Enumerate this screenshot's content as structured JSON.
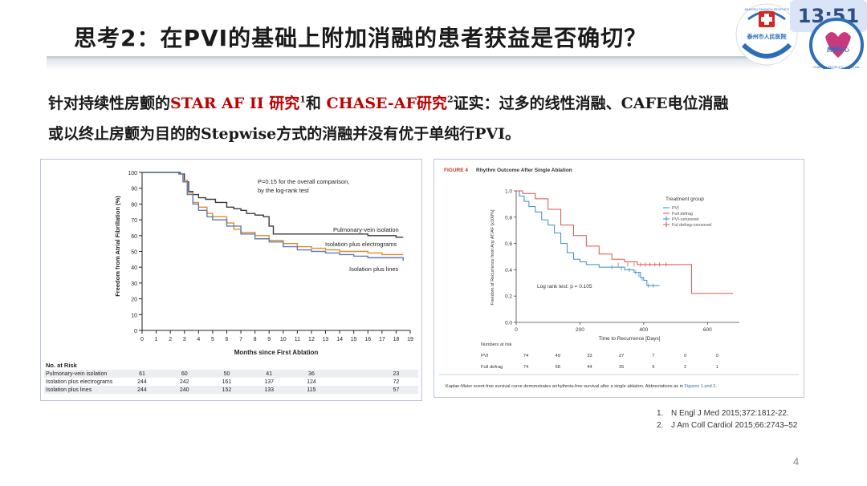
{
  "title": "思考2：在PVI的基础上附加消融的患者获益是否确切？",
  "clock": "13:51",
  "logo": {
    "top_text": "JIANGSU TAIZHOU PEOPLE'S",
    "hospital_cn": "泰州市人民医院",
    "bottom_text": "TAIZHOU PEOPLE'S HOSPITAL",
    "dept_cn": "房颤中心"
  },
  "body": {
    "l1_a": "针对持续性房颤的",
    "l1_red1": "STAR AF II 研究",
    "l1_sup1": "1",
    "l1_b": "和 ",
    "l1_red2": "CHASE-AF研究",
    "l1_sup2": "2",
    "l1_c": "证实：过多的线性消融、CAFE电位消融",
    "l2": "或以终止房颤为目的的Stepwise方式的消融并没有优于单纯行PVI。"
  },
  "left_chart": {
    "annotation_l1": "P=0.15 for the overall comparison,",
    "annotation_l2": "by the log-rank test",
    "ylabel": "Freedom from Atrial Fibrillation (%)",
    "xlabel": "Months since First Ablation",
    "risk_header": "No. at Risk",
    "risk_months": [
      0,
      3,
      6,
      9,
      12,
      18
    ],
    "risk_rows": [
      {
        "label": "Pulmonary-vein isolation",
        "values": [
          "61",
          "60",
          "50",
          "41",
          "36",
          "23"
        ]
      },
      {
        "label": "Isolation plus electrograms",
        "values": [
          "244",
          "242",
          "161",
          "137",
          "124",
          "72"
        ]
      },
      {
        "label": "Isolation plus lines",
        "values": [
          "244",
          "240",
          "152",
          "133",
          "115",
          "57"
        ]
      }
    ]
  },
  "right_chart": {
    "figure_label": "FIGURE 4",
    "figure_title": "Rhythm Outcome After Single Ablation",
    "ylabel": "Freedom of Recurrence from Any AT/AF [x100%]",
    "xlabel": "Time to Recurrence [Days]",
    "legend_title": "Treatment group",
    "legend_items": [
      "PVI",
      "Full defrag",
      "PVI-censored",
      "Ful defrag-censored"
    ],
    "logrank": "Log rank test: p = 0.105",
    "numbers_header": "Numbers at risk",
    "risk_times": [
      0,
      100,
      200,
      300,
      400,
      500,
      600
    ],
    "risk_rows": [
      {
        "label": "PVI",
        "values": [
          "74",
          "49",
          "33",
          "27",
          "7",
          "0",
          "0"
        ]
      },
      {
        "label": "Full defrag",
        "values": [
          "74",
          "58",
          "44",
          "35",
          "9",
          "2",
          "1"
        ]
      }
    ],
    "caption_a": "Kaplan-Meier event-free survival curve demonstrates arrhythmia-free survival after a single ablation. Abbreviations as in ",
    "caption_link": "Figures 1 and 2",
    "caption_b": "."
  },
  "chart_data": [
    {
      "type": "line",
      "title": "",
      "xlabel": "Months since First Ablation",
      "ylabel": "Freedom from Atrial Fibrillation (%)",
      "xlim": [
        0,
        19
      ],
      "ylim": [
        0,
        100
      ],
      "x_ticks": [
        0,
        1,
        2,
        3,
        4,
        5,
        6,
        7,
        8,
        9,
        10,
        11,
        12,
        13,
        14,
        15,
        16,
        17,
        18,
        19
      ],
      "y_ticks": [
        0,
        10,
        20,
        30,
        40,
        50,
        60,
        70,
        80,
        90,
        100
      ],
      "grid": false,
      "series": [
        {
          "name": "Pulmonary-vein isolation",
          "color": "#3a3a3a",
          "points": [
            [
              0,
              100
            ],
            [
              1.5,
              100
            ],
            [
              2.7,
              99
            ],
            [
              3,
              94
            ],
            [
              3.3,
              88
            ],
            [
              3.6,
              86
            ],
            [
              4,
              84
            ],
            [
              4.5,
              83
            ],
            [
              5.2,
              81
            ],
            [
              6,
              78
            ],
            [
              6.5,
              77
            ],
            [
              7,
              76
            ],
            [
              7.4,
              74
            ],
            [
              8,
              73
            ],
            [
              8.6,
              72
            ],
            [
              9,
              66
            ],
            [
              9.3,
              61
            ],
            [
              10,
              61
            ],
            [
              12,
              61
            ],
            [
              14,
              61
            ],
            [
              16,
              60
            ],
            [
              18,
              59
            ],
            [
              18.5,
              59
            ]
          ]
        },
        {
          "name": "Isolation plus electrograms",
          "color": "#e08a2c",
          "points": [
            [
              0,
              100
            ],
            [
              2.6,
              99
            ],
            [
              2.9,
              95
            ],
            [
              3.2,
              87
            ],
            [
              3.6,
              81
            ],
            [
              4,
              78
            ],
            [
              4.6,
              74
            ],
            [
              5,
              72
            ],
            [
              6,
              68
            ],
            [
              6.5,
              64
            ],
            [
              7,
              62
            ],
            [
              8,
              60
            ],
            [
              9,
              57
            ],
            [
              10,
              55
            ],
            [
              11,
              53
            ],
            [
              12,
              52
            ],
            [
              13,
              51
            ],
            [
              14,
              50
            ],
            [
              15,
              50
            ],
            [
              16,
              49
            ],
            [
              17,
              48
            ],
            [
              18.5,
              48
            ]
          ]
        },
        {
          "name": "Isolation plus lines",
          "color": "#5f7bb6",
          "points": [
            [
              0,
              100
            ],
            [
              2.6,
              99
            ],
            [
              2.9,
              94
            ],
            [
              3.2,
              86
            ],
            [
              3.6,
              80
            ],
            [
              4,
              76
            ],
            [
              4.6,
              72
            ],
            [
              5,
              70
            ],
            [
              6,
              66
            ],
            [
              7,
              61
            ],
            [
              8,
              58
            ],
            [
              9,
              56
            ],
            [
              10,
              53
            ],
            [
              11,
              51
            ],
            [
              12,
              50
            ],
            [
              13,
              49
            ],
            [
              14,
              48
            ],
            [
              15,
              47
            ],
            [
              16,
              46
            ],
            [
              17,
              46
            ],
            [
              18.5,
              44
            ]
          ]
        }
      ]
    },
    {
      "type": "line",
      "title": "Rhythm Outcome After Single Ablation",
      "xlabel": "Time to Recurrence [Days]",
      "ylabel": "Freedom of Recurrence from Any AT/AF [x100%]",
      "xlim": [
        0,
        700
      ],
      "ylim": [
        0,
        1.0
      ],
      "x_ticks": [
        0,
        200,
        400,
        600
      ],
      "y_ticks": [
        0.0,
        0.2,
        0.4,
        0.6,
        0.8,
        1.0
      ],
      "grid": false,
      "series": [
        {
          "name": "PVI",
          "color": "#3a8fc8",
          "points": [
            [
              0,
              1.0
            ],
            [
              10,
              0.96
            ],
            [
              25,
              0.92
            ],
            [
              40,
              0.88
            ],
            [
              60,
              0.84
            ],
            [
              80,
              0.78
            ],
            [
              100,
              0.74
            ],
            [
              120,
              0.68
            ],
            [
              140,
              0.6
            ],
            [
              160,
              0.53
            ],
            [
              180,
              0.48
            ],
            [
              200,
              0.46
            ],
            [
              220,
              0.44
            ],
            [
              260,
              0.42
            ],
            [
              300,
              0.42
            ],
            [
              340,
              0.4
            ],
            [
              370,
              0.38
            ],
            [
              390,
              0.34
            ],
            [
              400,
              0.32
            ],
            [
              410,
              0.28
            ],
            [
              450,
              0.28
            ]
          ]
        },
        {
          "name": "Full defrag",
          "color": "#d9534f",
          "points": [
            [
              0,
              1.0
            ],
            [
              20,
              0.98
            ],
            [
              60,
              0.94
            ],
            [
              100,
              0.86
            ],
            [
              140,
              0.74
            ],
            [
              180,
              0.66
            ],
            [
              220,
              0.58
            ],
            [
              260,
              0.52
            ],
            [
              300,
              0.48
            ],
            [
              340,
              0.46
            ],
            [
              380,
              0.44
            ],
            [
              420,
              0.44
            ],
            [
              500,
              0.44
            ],
            [
              550,
              0.44
            ],
            [
              550,
              0.22
            ],
            [
              680,
              0.22
            ]
          ]
        }
      ]
    }
  ]
}
